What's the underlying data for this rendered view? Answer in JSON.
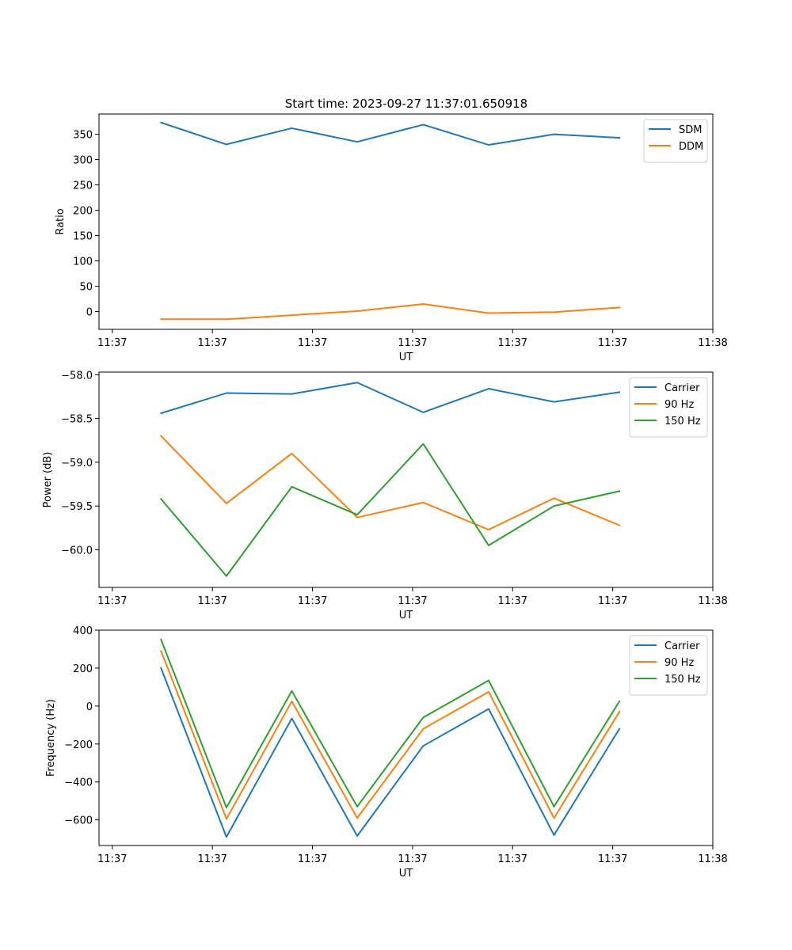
{
  "figure": {
    "title": "Start time: 2023-09-27 11:37:01.650918"
  },
  "chart_data": [
    {
      "type": "line",
      "title": "Start time: 2023-09-27 11:37:01.650918",
      "xlabel": "UT",
      "ylabel": "Ratio",
      "xlim": [
        0,
        9.2
      ],
      "ylim": [
        -35,
        390
      ],
      "x_tick_positions": [
        0.2,
        1.7,
        3.2,
        4.7,
        6.2,
        7.7,
        9.2
      ],
      "x_tick_labels": [
        "11:37",
        "11:37",
        "11:37",
        "11:37",
        "11:37",
        "11:37",
        "11:38"
      ],
      "y_ticks": [
        0,
        50,
        100,
        150,
        200,
        250,
        300,
        350
      ],
      "y_tick_labels": [
        "0",
        "50",
        "100",
        "150",
        "200",
        "250",
        "300",
        "350"
      ],
      "x": [
        0.93,
        1.91,
        2.89,
        3.87,
        4.86,
        5.84,
        6.82,
        7.8
      ],
      "series": [
        {
          "name": "SDM",
          "color": "#1f77b4",
          "values": [
            373,
            330,
            362,
            335,
            369,
            329,
            350,
            343
          ]
        },
        {
          "name": "DDM",
          "color": "#ff7f0e",
          "values": [
            -15,
            -15,
            -7,
            1,
            15,
            -3,
            -1,
            8
          ]
        }
      ],
      "legend": "upper right"
    },
    {
      "type": "line",
      "title": "",
      "xlabel": "UT",
      "ylabel": "Power (dB)",
      "xlim": [
        0,
        9.2
      ],
      "ylim": [
        -60.43,
        -57.97
      ],
      "x_tick_positions": [
        0.2,
        1.7,
        3.2,
        4.7,
        6.2,
        7.7,
        9.2
      ],
      "x_tick_labels": [
        "11:37",
        "11:37",
        "11:37",
        "11:37",
        "11:37",
        "11:37",
        "11:38"
      ],
      "y_ticks": [
        -60.0,
        -59.5,
        -59.0,
        -58.5,
        -58.0
      ],
      "y_tick_labels": [
        "−60.0",
        "−59.5",
        "−59.0",
        "−58.5",
        "−58.0"
      ],
      "x": [
        0.93,
        1.91,
        2.89,
        3.87,
        4.86,
        5.84,
        6.82,
        7.8
      ],
      "series": [
        {
          "name": "Carrier",
          "color": "#1f77b4",
          "values": [
            -58.44,
            -58.21,
            -58.22,
            -58.09,
            -58.43,
            -58.16,
            -58.31,
            -58.2
          ]
        },
        {
          "name": "90 Hz",
          "color": "#ff7f0e",
          "values": [
            -58.7,
            -59.47,
            -58.9,
            -59.63,
            -59.46,
            -59.77,
            -59.41,
            -59.72
          ]
        },
        {
          "name": "150 Hz",
          "color": "#2ca02c",
          "values": [
            -59.42,
            -60.3,
            -59.28,
            -59.6,
            -58.79,
            -59.95,
            -59.5,
            -59.33
          ]
        }
      ],
      "legend": "upper right"
    },
    {
      "type": "line",
      "title": "",
      "xlabel": "UT",
      "ylabel": "Frequency (Hz)",
      "xlim": [
        0,
        9.2
      ],
      "ylim": [
        -735,
        400
      ],
      "x_tick_positions": [
        0.2,
        1.7,
        3.2,
        4.7,
        6.2,
        7.7,
        9.2
      ],
      "x_tick_labels": [
        "11:37",
        "11:37",
        "11:37",
        "11:37",
        "11:37",
        "11:37",
        "11:38"
      ],
      "y_ticks": [
        -600,
        -400,
        -200,
        0,
        200,
        400
      ],
      "y_tick_labels": [
        "−600",
        "−400",
        "−200",
        "0",
        "200",
        "400"
      ],
      "x": [
        0.93,
        1.91,
        2.89,
        3.87,
        4.86,
        5.84,
        6.82,
        7.8
      ],
      "series": [
        {
          "name": "Carrier",
          "color": "#1f77b4",
          "values": [
            200,
            -690,
            -65,
            -685,
            -210,
            -15,
            -680,
            -120
          ]
        },
        {
          "name": "90 Hz",
          "color": "#ff7f0e",
          "values": [
            290,
            -595,
            25,
            -590,
            -120,
            75,
            -590,
            -30
          ]
        },
        {
          "name": "150 Hz",
          "color": "#2ca02c",
          "values": [
            350,
            -535,
            80,
            -530,
            -60,
            135,
            -530,
            25
          ]
        }
      ],
      "legend": "upper right"
    }
  ]
}
